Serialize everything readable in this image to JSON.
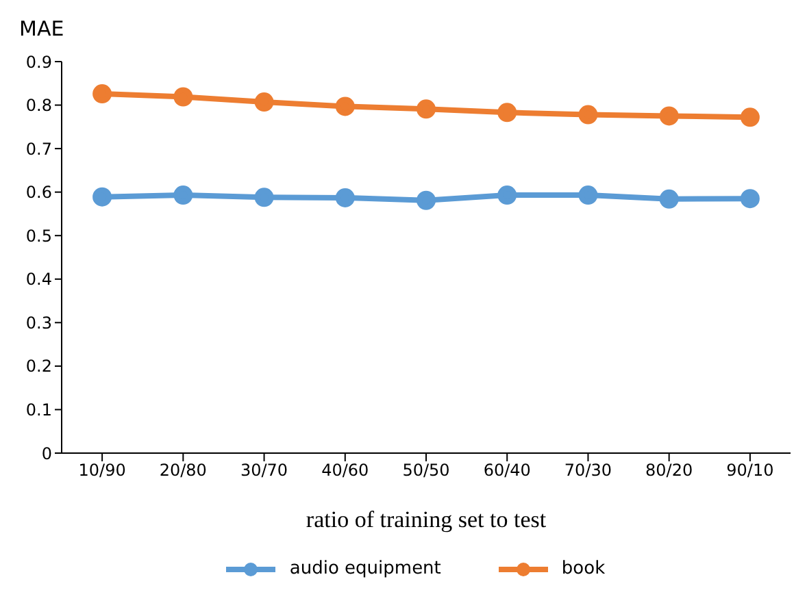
{
  "chart_data": {
    "type": "line",
    "ylabel": "MAE",
    "xlabel": "ratio of training set to test",
    "categories": [
      "10/90",
      "20/80",
      "30/70",
      "40/60",
      "50/50",
      "60/40",
      "70/30",
      "80/20",
      "90/10"
    ],
    "series": [
      {
        "name": "audio equipment",
        "color": "#5b9bd5",
        "values": [
          0.589,
          0.593,
          0.588,
          0.587,
          0.581,
          0.593,
          0.593,
          0.584,
          0.585
        ]
      },
      {
        "name": "book",
        "color": "#ed7d31",
        "values": [
          0.826,
          0.819,
          0.807,
          0.797,
          0.791,
          0.783,
          0.778,
          0.775,
          0.772
        ]
      }
    ],
    "ylim": [
      0,
      0.9
    ],
    "yticks": [
      0,
      0.1,
      0.2,
      0.3,
      0.4,
      0.5,
      0.6,
      0.7,
      0.8,
      0.9
    ],
    "grid": false,
    "legend": "bottom",
    "marker": "circle",
    "line_style": "solid"
  }
}
